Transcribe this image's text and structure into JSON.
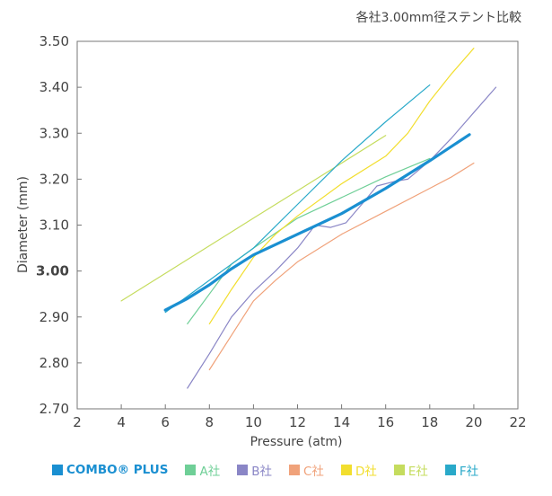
{
  "note": "各社3.00mm径ステント比較",
  "chart_data": {
    "type": "line",
    "xlabel": "Pressure (atm)",
    "ylabel": "Diameter (mm)",
    "xlim": [
      2,
      22
    ],
    "ylim": [
      2.7,
      3.5
    ],
    "x_ticks": [
      "2",
      "4",
      "6",
      "8",
      "10",
      "12",
      "14",
      "16",
      "18",
      "20",
      "22"
    ],
    "y_ticks": [
      "2.70",
      "2.80",
      "2.90",
      "3.00",
      "3.10",
      "3.20",
      "3.30",
      "3.40",
      "3.50"
    ],
    "highlight_tick": "3.00",
    "grid": false,
    "legend_position": "bottom",
    "series": [
      {
        "name": "COMBO® PLUS",
        "color": "#1a8fd1",
        "width": 3.2,
        "points": [
          [
            6,
            2.915
          ],
          [
            7,
            2.94
          ],
          [
            8,
            2.97
          ],
          [
            9,
            3.005
          ],
          [
            10,
            3.035
          ],
          [
            12,
            3.08
          ],
          [
            14,
            3.125
          ],
          [
            16,
            3.18
          ],
          [
            18,
            3.24
          ],
          [
            19.8,
            3.297
          ]
        ]
      },
      {
        "name": "A社",
        "color": "#6fcf97",
        "width": 1.2,
        "points": [
          [
            7,
            2.885
          ],
          [
            8,
            2.95
          ],
          [
            9,
            3.015
          ],
          [
            10,
            3.05
          ],
          [
            12,
            3.115
          ],
          [
            14,
            3.16
          ],
          [
            16,
            3.205
          ],
          [
            17,
            3.225
          ],
          [
            18,
            3.245
          ]
        ]
      },
      {
        "name": "B社",
        "color": "#8a86c6",
        "width": 1.2,
        "points": [
          [
            7,
            2.745
          ],
          [
            8,
            2.82
          ],
          [
            9,
            2.9
          ],
          [
            10,
            2.955
          ],
          [
            11,
            3.0
          ],
          [
            12,
            3.05
          ],
          [
            12.8,
            3.1
          ],
          [
            13.5,
            3.095
          ],
          [
            14.2,
            3.105
          ],
          [
            15,
            3.15
          ],
          [
            15.6,
            3.185
          ],
          [
            16.4,
            3.195
          ],
          [
            17,
            3.2
          ],
          [
            18,
            3.24
          ],
          [
            19,
            3.29
          ],
          [
            20,
            3.345
          ],
          [
            21,
            3.4
          ]
        ]
      },
      {
        "name": "C社",
        "color": "#f0a27a",
        "width": 1.2,
        "points": [
          [
            8,
            2.785
          ],
          [
            9,
            2.86
          ],
          [
            10,
            2.935
          ],
          [
            11,
            2.98
          ],
          [
            12,
            3.02
          ],
          [
            14,
            3.08
          ],
          [
            16,
            3.13
          ],
          [
            18,
            3.18
          ],
          [
            19,
            3.205
          ],
          [
            20,
            3.235
          ]
        ]
      },
      {
        "name": "D社",
        "color": "#f2de2e",
        "width": 1.2,
        "points": [
          [
            8,
            2.885
          ],
          [
            9,
            2.96
          ],
          [
            10,
            3.03
          ],
          [
            11,
            3.08
          ],
          [
            12,
            3.12
          ],
          [
            14,
            3.19
          ],
          [
            16,
            3.25
          ],
          [
            17,
            3.3
          ],
          [
            18,
            3.37
          ],
          [
            19,
            3.43
          ],
          [
            20,
            3.485
          ]
        ]
      },
      {
        "name": "E社",
        "color": "#c5dc5e",
        "width": 1.2,
        "points": [
          [
            4,
            2.935
          ],
          [
            6,
            2.995
          ],
          [
            8,
            3.055
          ],
          [
            10,
            3.115
          ],
          [
            12,
            3.175
          ],
          [
            14,
            3.235
          ],
          [
            16,
            3.295
          ]
        ]
      },
      {
        "name": "F社",
        "color": "#29a9c9",
        "width": 1.2,
        "points": [
          [
            6,
            2.91
          ],
          [
            8,
            2.98
          ],
          [
            10,
            3.05
          ],
          [
            12,
            3.145
          ],
          [
            14,
            3.24
          ],
          [
            16,
            3.325
          ],
          [
            18,
            3.405
          ]
        ]
      }
    ]
  }
}
